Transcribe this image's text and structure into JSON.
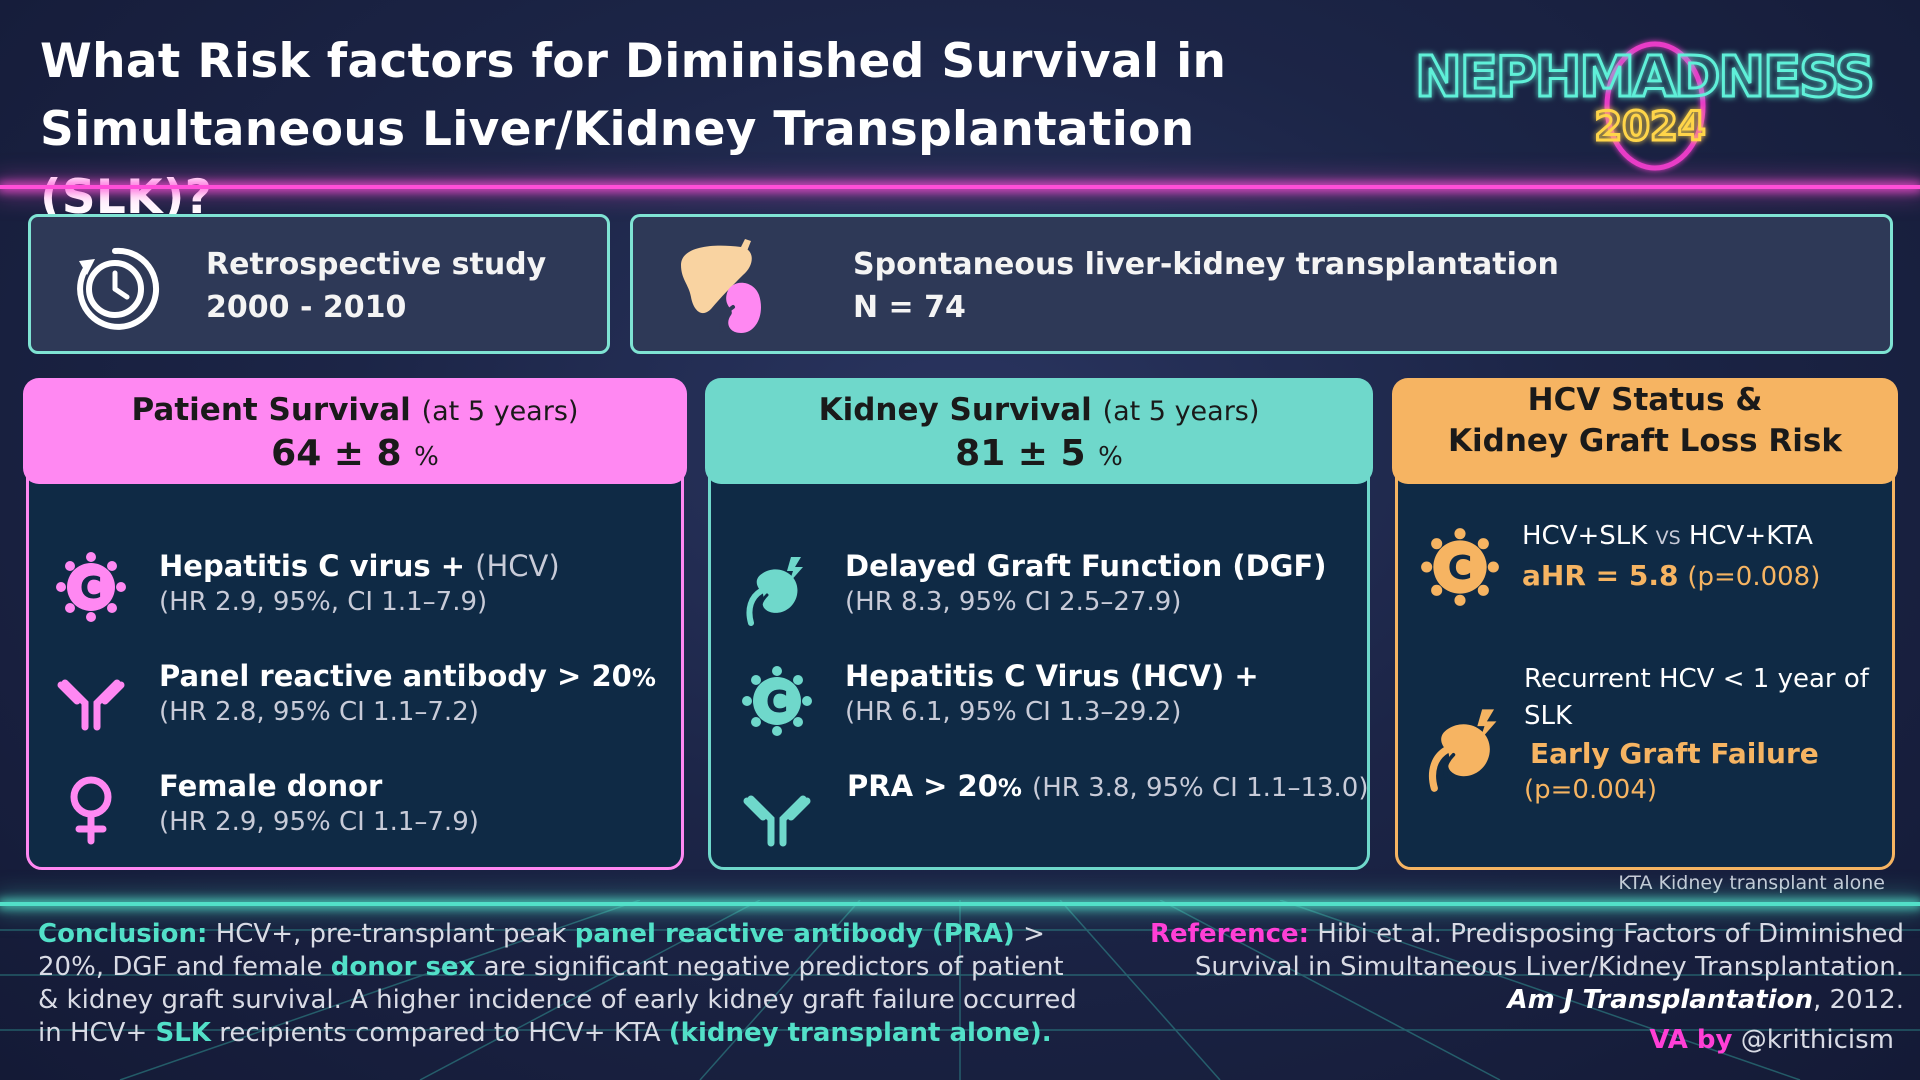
{
  "title": {
    "line1": "What Risk factors for Diminished Survival in",
    "line2": "Simultaneous Liver/Kidney Transplantation (SLK)?"
  },
  "logo": {
    "word": "NEPHMADNESS",
    "year": "2024"
  },
  "colors": {
    "pink": "#ff88f2",
    "teal": "#6fd8cb",
    "orange": "#f6b462",
    "navy": "#0f2a45"
  },
  "study": {
    "line1": "Retrospective study",
    "line2": "2000 - 2010",
    "icon": "clock-icon"
  },
  "population": {
    "line1": "Spontaneous liver-kidney transplantation",
    "line2": "N = 74",
    "icon": "liver-kidney-icon"
  },
  "patient": {
    "title": "Patient Survival",
    "sub": "(at 5 years)",
    "value": "64 ± 8",
    "pct": "%",
    "items": [
      {
        "title": "Hepatitis C virus +",
        "paren": "(HCV)",
        "sub": "(HR 2.9, 95%, CI 1.1–7.9)",
        "icon": "virus-icon"
      },
      {
        "title": "Panel reactive antibody > 20",
        "pct": "%",
        "sub": "(HR 2.8, 95% CI 1.1–7.2)",
        "icon": "antibody-icon"
      },
      {
        "title": "Female donor",
        "sub": "(HR 2.9, 95% CI 1.1–7.9)",
        "icon": "female-icon"
      }
    ]
  },
  "kidney": {
    "title": "Kidney Survival",
    "sub": "(at 5 years)",
    "value": "81 ± 5",
    "pct": "%",
    "items": [
      {
        "title": "Delayed Graft Function (DGF)",
        "sub": "(HR 8.3, 95% CI 2.5–27.9)",
        "icon": "failing-kidney-icon"
      },
      {
        "title": "Hepatitis C Virus (HCV) +",
        "sub": "(HR 6.1, 95% CI 1.3–29.2)",
        "icon": "virus-icon"
      },
      {
        "title": "PRA > 20",
        "pct": "%",
        "paren": "(HR 3.8, 95% CI 1.1–13.0)",
        "icon": "antibody-icon"
      }
    ]
  },
  "hcv": {
    "title_l1": "HCV Status &",
    "title_l2": "Kidney Graft Loss Risk",
    "cmp_a": "HCV+SLK",
    "cmp_vs": "VS",
    "cmp_b": "HCV+KTA",
    "ahr": "aHR = 5.8",
    "ahr_p": "(p=0.008)",
    "recurrent_l1": "Recurrent HCV < 1 year of",
    "recurrent_l2": "SLK",
    "egf": "Early Graft Failure",
    "egf_p": "(p=0.004)"
  },
  "kta_note": "KTA Kidney transplant alone",
  "conclusion": {
    "label": "Conclusion:",
    "t1": "HCV+, pre-transplant peak",
    "h1": "panel reactive antibody (PRA)",
    "t2": "> 20%, DGF and female",
    "h2": "donor sex",
    "t3": "are significant negative predictors of patient & kidney graft survival. A higher incidence of early kidney graft failure occurred in HCV+",
    "h3": "SLK",
    "t4": "recipients compared to HCV+ KTA",
    "h4": "(kidney transplant alone)."
  },
  "reference": {
    "label": "Reference:",
    "text": "Hibi et al. Predisposing Factors of Diminished Survival in Simultaneous Liver/Kidney Transplantation.",
    "journal": "Am J Transplantation",
    "year": ", 2012."
  },
  "va": {
    "label": "VA by",
    "handle": "@krithicism"
  }
}
